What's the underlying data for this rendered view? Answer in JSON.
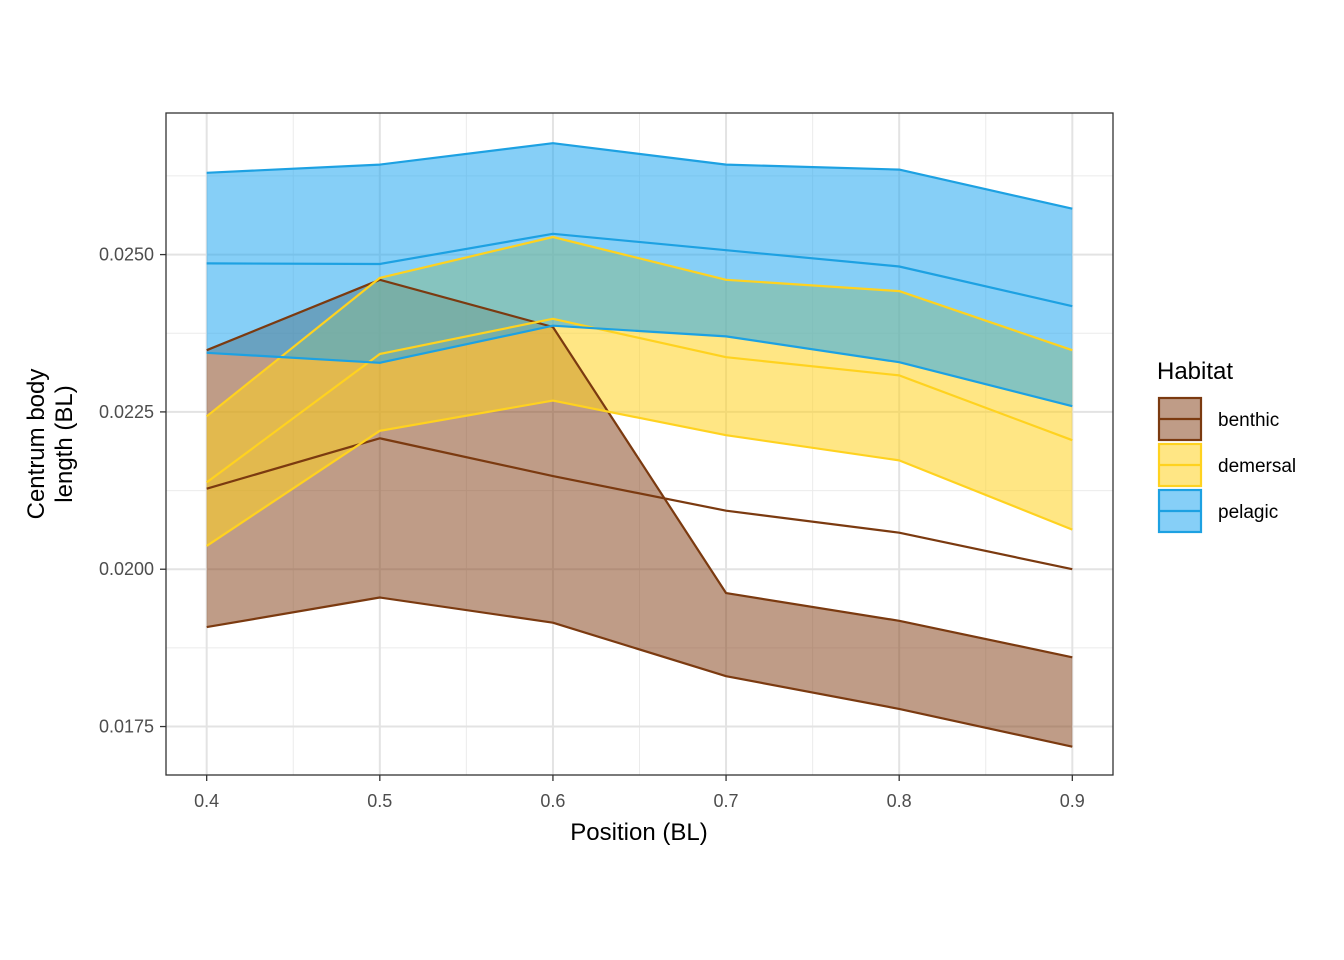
{
  "chart_data": {
    "type": "area",
    "xlabel": "Position (BL)",
    "ylabel_lines": [
      "Centrum body",
      "length (BL)"
    ],
    "x": [
      0.4,
      0.5,
      0.6,
      0.7,
      0.8,
      0.9
    ],
    "x_ticks": [
      "0.4",
      "0.5",
      "0.6",
      "0.7",
      "0.8",
      "0.9"
    ],
    "y_ticks": [
      {
        "value": 0.0175,
        "label": "0.0175"
      },
      {
        "value": 0.02,
        "label": "0.0200"
      },
      {
        "value": 0.0225,
        "label": "0.0225"
      },
      {
        "value": 0.025,
        "label": "0.0250"
      }
    ],
    "xlim": [
      0.3765,
      0.9235
    ],
    "ylim": [
      0.01673,
      0.02725
    ],
    "grid": true,
    "legend_position": "right",
    "legend_title": "Habitat",
    "series": [
      {
        "name": "benthic",
        "color": "#7B3A10",
        "fill": "#8B4A25",
        "mean": [
          0.02128,
          0.02208,
          0.02148,
          0.02093,
          0.02058,
          0.02
        ],
        "lower": [
          0.01908,
          0.01955,
          0.01915,
          0.0183,
          0.01778,
          0.01718
        ],
        "upper": [
          0.02348,
          0.0246,
          0.02385,
          0.01962,
          0.01918,
          0.0186
        ]
      },
      {
        "name": "demersal",
        "color": "#FFD21F",
        "fill": "#FFD21F",
        "mean": [
          0.02138,
          0.02342,
          0.02398,
          0.02337,
          0.02308,
          0.02205
        ],
        "lower": [
          0.02037,
          0.0222,
          0.02268,
          0.02213,
          0.02173,
          0.02063
        ],
        "upper": [
          0.02243,
          0.02463,
          0.02528,
          0.0246,
          0.02442,
          0.02348
        ]
      },
      {
        "name": "pelagic",
        "color": "#1DA1E2",
        "fill": "#22A7F0",
        "mean": [
          0.02486,
          0.02485,
          0.02533,
          0.02507,
          0.02481,
          0.02418
        ],
        "lower": [
          0.02344,
          0.02328,
          0.02387,
          0.0237,
          0.02329,
          0.02259
        ],
        "upper": [
          0.0263,
          0.02643,
          0.02677,
          0.02643,
          0.02635,
          0.02573
        ]
      }
    ]
  }
}
